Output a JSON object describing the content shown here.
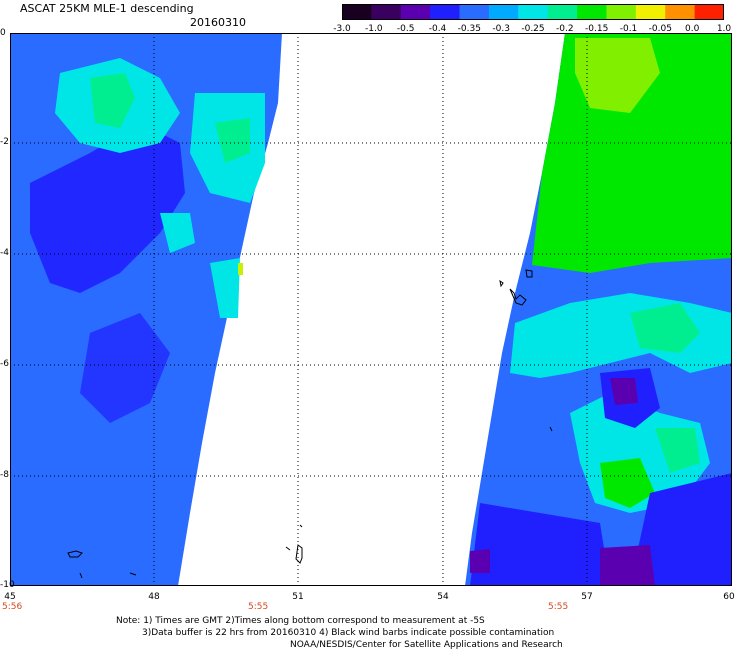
{
  "header": {
    "title": "ASCAT 25KM MLE-1 descending",
    "date": "20160310"
  },
  "colorbar": {
    "labels": [
      "-3.0",
      "-1.0",
      "-0.5",
      "-0.4",
      "-0.35",
      "-0.3",
      "-0.25",
      "-0.2",
      "-0.15",
      "-0.1",
      "-0.05",
      "0.0",
      "1.0"
    ],
    "colors": [
      "#1a0020",
      "#3a0060",
      "#5a00b0",
      "#2020ff",
      "#2a6cff",
      "#00aaff",
      "#00e6e6",
      "#00ee90",
      "#00e800",
      "#80f000",
      "#f0f000",
      "#ff9000",
      "#ff2000"
    ]
  },
  "map": {
    "x_ticks": [
      "45",
      "48",
      "51",
      "54",
      "57",
      "60"
    ],
    "y_ticks": [
      "0",
      "-2",
      "-4",
      "-6",
      "-8",
      "-10"
    ],
    "times": {
      "left": "5:56",
      "mid": "5:55",
      "right": "5:55"
    },
    "swath_colors": {
      "blue": "#2a6cff",
      "deep_blue": "#2020ff",
      "cyan": "#00e6e6",
      "green": "#00e800",
      "light_green": "#80f000"
    }
  },
  "footer": {
    "line1": "Note: 1) Times are GMT 2)Times along bottom correspond to measurement at -5S",
    "line2": "3)Data buffer is 22 hrs from 20160310 4) Black wind barbs indicate possible contamination",
    "line3": "NOAA/NESDIS/Center for Satellite Applications and Research"
  }
}
